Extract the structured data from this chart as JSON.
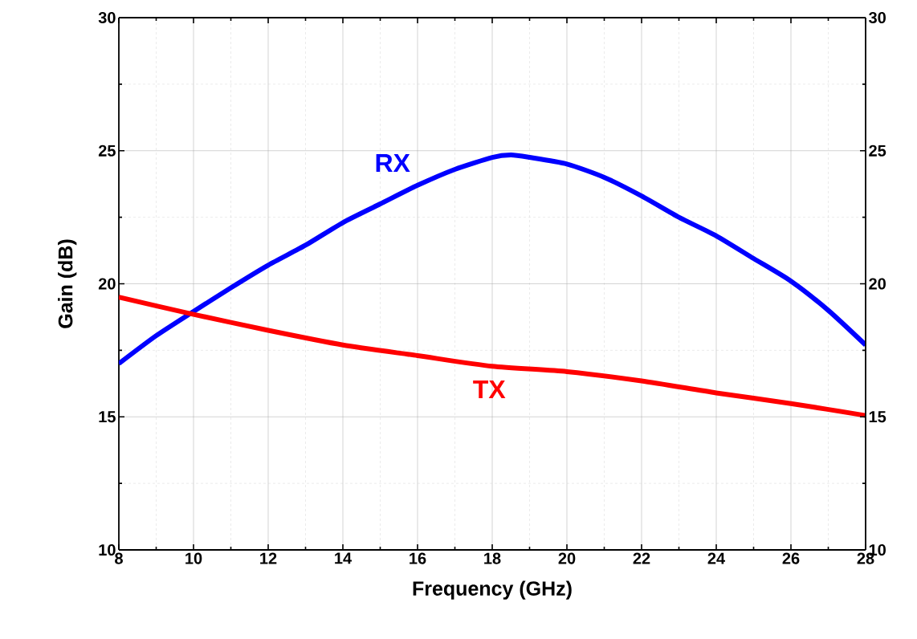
{
  "chart_data": {
    "type": "line",
    "xlabel": "Frequency (GHz)",
    "ylabel": "Gain (dB)",
    "xlim": [
      8,
      28
    ],
    "xticks": [
      8,
      10,
      12,
      14,
      16,
      18,
      20,
      22,
      24,
      26,
      28
    ],
    "ylim": [
      10,
      30
    ],
    "yticks": [
      10,
      15,
      20,
      25,
      30
    ],
    "y2lim": [
      10,
      30
    ],
    "y2ticks": [
      10,
      15,
      20,
      25,
      30
    ],
    "grid": true,
    "legend": false,
    "marker": "none",
    "line_style": "solid",
    "series": [
      {
        "name": "RX",
        "color": "#0000ff",
        "x": [
          8,
          9,
          10,
          11,
          12,
          13,
          14,
          15,
          16,
          17,
          18,
          18.5,
          19,
          20,
          21,
          22,
          23,
          24,
          25,
          26,
          27,
          28
        ],
        "values": [
          17.0,
          18.05,
          18.96,
          19.85,
          20.7,
          21.45,
          22.3,
          23.0,
          23.7,
          24.3,
          24.75,
          24.84,
          24.75,
          24.5,
          24.0,
          23.3,
          22.5,
          21.8,
          20.95,
          20.1,
          19.0,
          17.7
        ]
      },
      {
        "name": "TX",
        "color": "#ff0000",
        "x": [
          8,
          10,
          12,
          14,
          16,
          18,
          20,
          22,
          24,
          26,
          28
        ],
        "values": [
          19.5,
          18.85,
          18.25,
          17.7,
          17.3,
          16.9,
          16.7,
          16.35,
          15.9,
          15.5,
          15.05
        ]
      }
    ]
  }
}
